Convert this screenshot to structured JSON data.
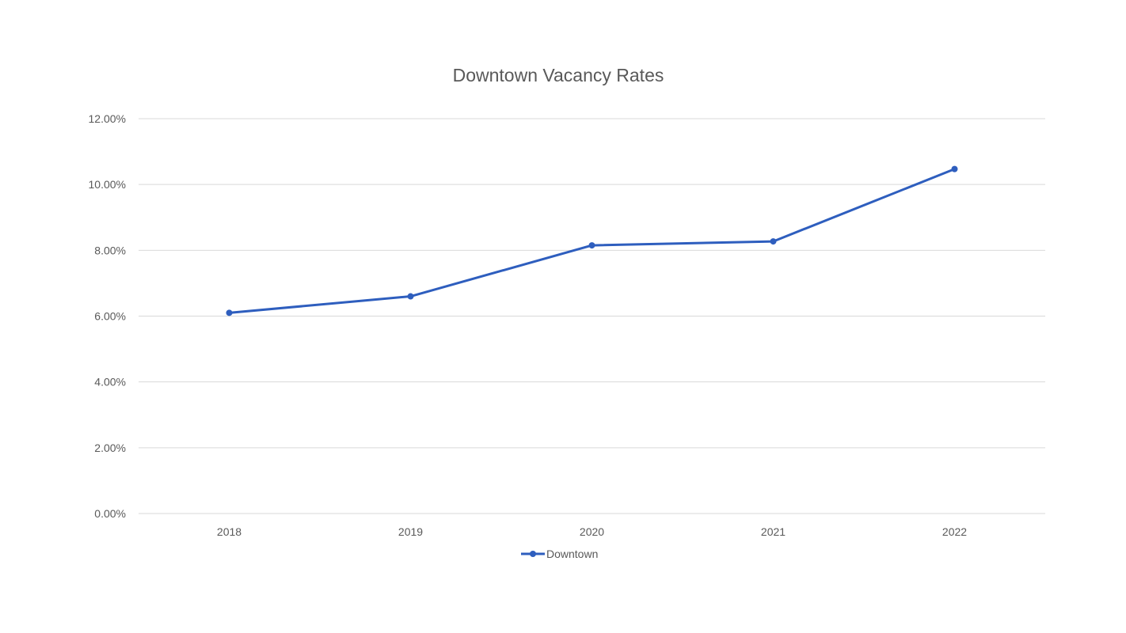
{
  "chart_data": {
    "type": "line",
    "title": "Downtown Vacancy Rates",
    "categories": [
      "2018",
      "2019",
      "2020",
      "2021",
      "2022"
    ],
    "series": [
      {
        "name": "Downtown",
        "values": [
          6.1,
          6.6,
          8.15,
          8.27,
          10.47
        ],
        "color": "#2E5EBE"
      }
    ],
    "ylim": [
      0,
      12
    ],
    "y_ticks": [
      0,
      2,
      4,
      6,
      8,
      10,
      12
    ],
    "y_tick_labels": [
      "0.00%",
      "2.00%",
      "4.00%",
      "6.00%",
      "8.00%",
      "10.00%",
      "12.00%"
    ],
    "grid": true,
    "legend_position": "bottom",
    "colors": {
      "grid": "#D9D9D9",
      "text": "#595959"
    }
  }
}
